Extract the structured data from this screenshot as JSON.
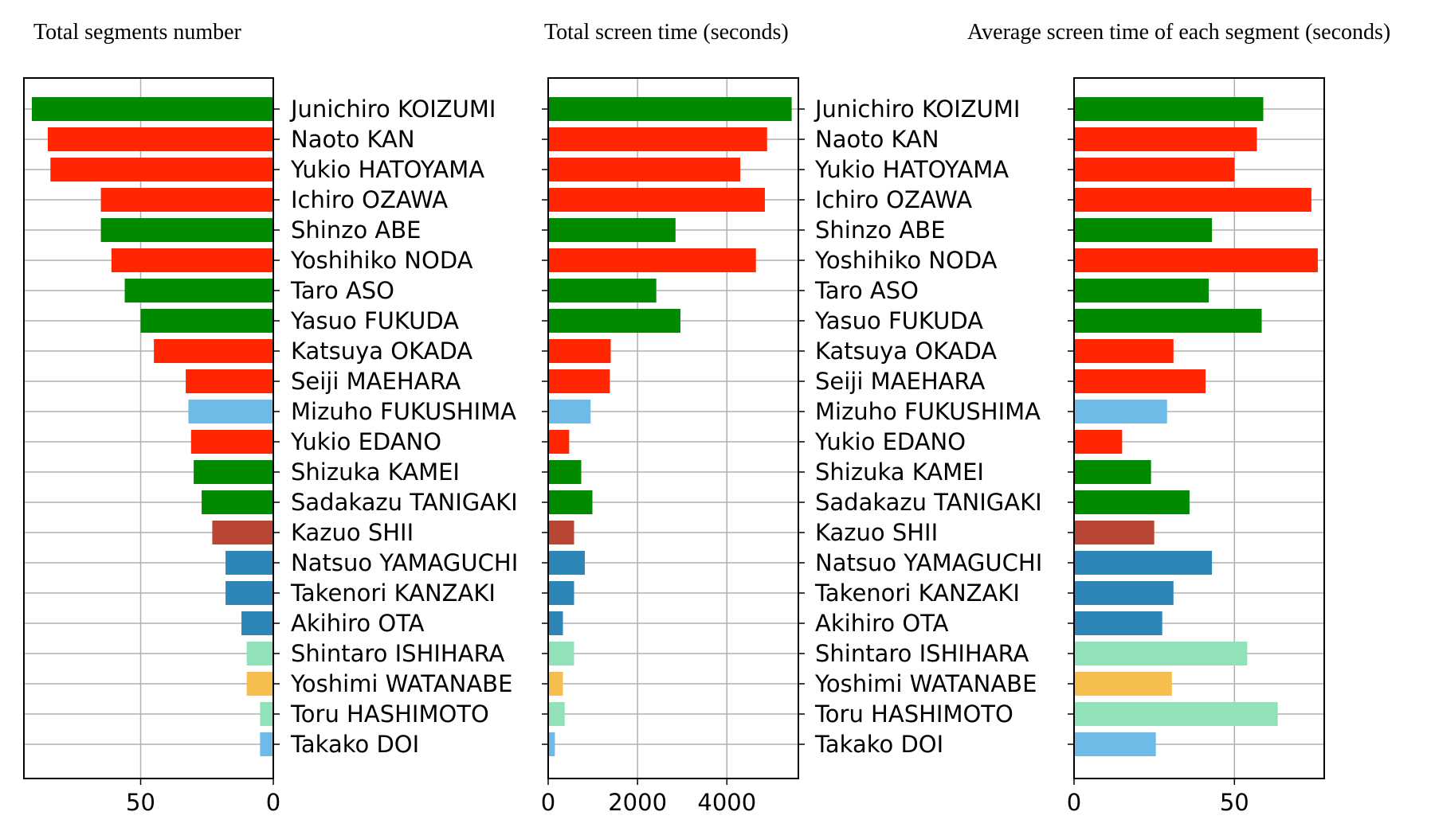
{
  "colors": {
    "ldp": "#008a00",
    "dpj": "#ff2600",
    "sdp": "#6fbbe8",
    "jcp": "#b94535",
    "komeito": "#2e86b8",
    "ishin": "#91e2b9",
    "minna": "#f6bd4f",
    "grid": "#b0b0b0"
  },
  "chart_data": [
    {
      "type": "bar",
      "orientation": "horizontal",
      "title": "Total segments number",
      "xaxis_inverted": true,
      "xlim": [
        0,
        94
      ],
      "xticks": [
        50,
        0
      ],
      "grid": true,
      "categories": [
        "Junichiro KOIZUMI",
        "Naoto KAN",
        "Yukio HATOYAMA",
        "Ichiro OZAWA",
        "Shinzo ABE",
        "Yoshihiko NODA",
        "Taro ASO",
        "Yasuo FUKUDA",
        "Katsuya OKADA",
        "Seiji MAEHARA",
        "Mizuho FUKUSHIMA",
        "Yukio EDANO",
        "Shizuka KAMEI",
        "Sadakazu TANIGAKI",
        "Kazuo SHII",
        "Natsuo YAMAGUCHI",
        "Takenori KANZAKI",
        "Akihiro OTA",
        "Shintaro ISHIHARA",
        "Yoshimi WATANABE",
        "Toru HASHIMOTO",
        "Takako DOI"
      ],
      "values": [
        91,
        85,
        84,
        65,
        65,
        61,
        56,
        50,
        45,
        33,
        32,
        31,
        30,
        27,
        23,
        18,
        18,
        12,
        10,
        10,
        5,
        5
      ],
      "colors": [
        "ldp",
        "dpj",
        "dpj",
        "dpj",
        "ldp",
        "dpj",
        "ldp",
        "ldp",
        "dpj",
        "dpj",
        "sdp",
        "dpj",
        "ldp",
        "ldp",
        "jcp",
        "komeito",
        "komeito",
        "komeito",
        "ishin",
        "minna",
        "ishin",
        "sdp"
      ]
    },
    {
      "type": "bar",
      "orientation": "horizontal",
      "title": "Total screen time (seconds)",
      "xlim": [
        0,
        5600
      ],
      "xticks": [
        0,
        2000,
        4000
      ],
      "grid": true,
      "categories": [
        "Junichiro KOIZUMI",
        "Naoto KAN",
        "Yukio HATOYAMA",
        "Ichiro OZAWA",
        "Shinzo ABE",
        "Yoshihiko NODA",
        "Taro ASO",
        "Yasuo FUKUDA",
        "Katsuya OKADA",
        "Seiji MAEHARA",
        "Mizuho FUKUSHIMA",
        "Yukio EDANO",
        "Shizuka KAMEI",
        "Sadakazu TANIGAKI",
        "Kazuo SHII",
        "Natsuo YAMAGUCHI",
        "Takenori KANZAKI",
        "Akihiro OTA",
        "Shintaro ISHIHARA",
        "Yoshimi WATANABE",
        "Toru HASHIMOTO",
        "Takako DOI"
      ],
      "values": [
        5450,
        4900,
        4300,
        4850,
        2850,
        4650,
        2420,
        2960,
        1400,
        1380,
        950,
        470,
        740,
        990,
        580,
        820,
        580,
        330,
        580,
        330,
        370,
        150
      ],
      "colors": [
        "ldp",
        "dpj",
        "dpj",
        "dpj",
        "ldp",
        "dpj",
        "ldp",
        "ldp",
        "dpj",
        "dpj",
        "sdp",
        "dpj",
        "ldp",
        "ldp",
        "jcp",
        "komeito",
        "komeito",
        "komeito",
        "ishin",
        "minna",
        "ishin",
        "sdp"
      ]
    },
    {
      "type": "bar",
      "orientation": "horizontal",
      "title": "Average screen time of each segment (seconds)",
      "xlim": [
        0,
        78
      ],
      "xticks": [
        0,
        50
      ],
      "grid": true,
      "categories": [
        "Junichiro KOIZUMI",
        "Naoto KAN",
        "Yukio HATOYAMA",
        "Ichiro OZAWA",
        "Shinzo ABE",
        "Yoshihiko NODA",
        "Taro ASO",
        "Yasuo FUKUDA",
        "Katsuya OKADA",
        "Seiji MAEHARA",
        "Mizuho FUKUSHIMA",
        "Yukio EDANO",
        "Shizuka KAMEI",
        "Sadakazu TANIGAKI",
        "Kazuo SHII",
        "Natsuo YAMAGUCHI",
        "Takenori KANZAKI",
        "Akihiro OTA",
        "Shintaro ISHIHARA",
        "Yoshimi WATANABE",
        "Toru HASHIMOTO",
        "Takako DOI"
      ],
      "values": [
        59,
        57,
        50,
        74,
        43,
        76,
        42,
        58.5,
        31,
        41,
        29,
        15,
        24,
        36,
        25,
        43,
        31,
        27.5,
        54,
        30.5,
        63.5,
        25.5
      ],
      "colors": [
        "ldp",
        "dpj",
        "dpj",
        "dpj",
        "ldp",
        "dpj",
        "ldp",
        "ldp",
        "dpj",
        "dpj",
        "sdp",
        "dpj",
        "ldp",
        "ldp",
        "jcp",
        "komeito",
        "komeito",
        "komeito",
        "ishin",
        "minna",
        "ishin",
        "sdp"
      ]
    }
  ]
}
